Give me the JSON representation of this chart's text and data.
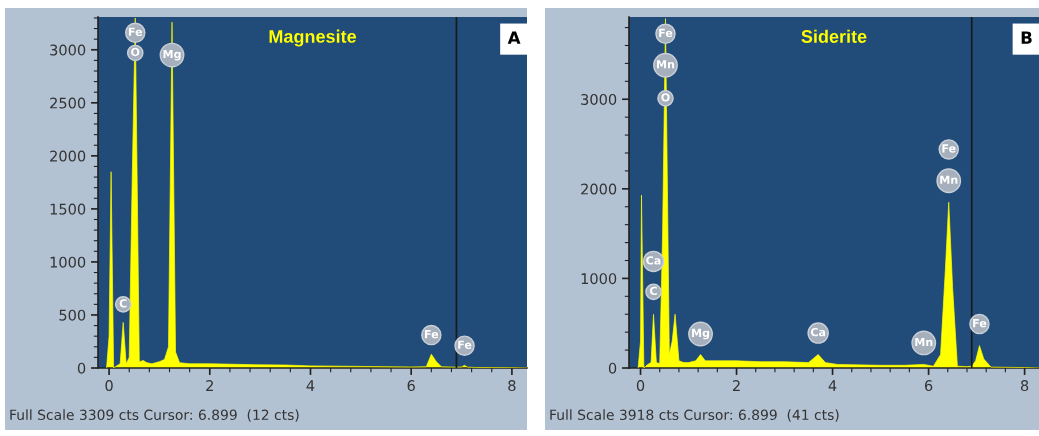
{
  "chart_data": [
    {
      "type": "area",
      "title": "Magnesite",
      "xlim": [
        -0.22,
        8.3
      ],
      "ylim": [
        0,
        3309
      ],
      "xticks": [
        0,
        2,
        4,
        6,
        8
      ],
      "yticks": [
        0,
        500,
        1000,
        1500,
        2000,
        2500,
        3000
      ],
      "grid": false,
      "x": [
        -0.05,
        0.0,
        0.04,
        0.09,
        0.15,
        0.22,
        0.28,
        0.34,
        0.4,
        0.46,
        0.52,
        0.6,
        0.68,
        0.75,
        0.85,
        1.0,
        1.1,
        1.18,
        1.25,
        1.32,
        1.4,
        1.6,
        2.0,
        2.5,
        3.0,
        3.5,
        4.0,
        5.0,
        5.5,
        6.0,
        6.3,
        6.4,
        6.5,
        6.6,
        6.9,
        7.0,
        7.06,
        7.12,
        7.3,
        8.0,
        8.3
      ],
      "series": [
        {
          "color": "#ffff00",
          "values": [
            0,
            300,
            1850,
            0,
            20,
            40,
            430,
            40,
            100,
            1800,
            3300,
            60,
            70,
            50,
            40,
            60,
            80,
            200,
            3260,
            150,
            50,
            40,
            40,
            35,
            30,
            28,
            20,
            15,
            12,
            10,
            12,
            130,
            60,
            12,
            8,
            10,
            25,
            8,
            5,
            3,
            0
          ]
        }
      ],
      "ref_lines": [
        {
          "axis": "x",
          "value": 6.899,
          "color": "#1a1a1a"
        }
      ],
      "annotations": [
        "A",
        "Full Scale 3309 cts Cursor: 6.899  (12 cts)",
        {
          "text": "O",
          "x": 0.52,
          "y": 2970
        },
        {
          "text": "Fe",
          "x": 0.52,
          "y": 3160
        },
        {
          "text": "Mg",
          "x": 1.25,
          "y": 2950
        },
        {
          "text": "C",
          "x": 0.28,
          "y": 600
        },
        {
          "text": "Fe",
          "x": 6.4,
          "y": 310
        },
        {
          "text": "Fe",
          "x": 7.06,
          "y": 210
        }
      ]
    },
    {
      "type": "area",
      "title": "Siderite",
      "xlim": [
        -0.24,
        8.3
      ],
      "ylim": [
        0,
        3918
      ],
      "xticks": [
        0,
        2,
        4,
        6,
        8
      ],
      "yticks": [
        0,
        1000,
        2000,
        3000
      ],
      "grid": false,
      "x": [
        -0.05,
        0.0,
        0.02,
        0.07,
        0.15,
        0.22,
        0.27,
        0.33,
        0.4,
        0.46,
        0.52,
        0.6,
        0.66,
        0.72,
        0.8,
        0.9,
        1.0,
        1.15,
        1.25,
        1.35,
        1.6,
        2.0,
        2.5,
        3.0,
        3.5,
        3.7,
        3.85,
        4.1,
        4.5,
        5.0,
        5.5,
        5.9,
        6.1,
        6.25,
        6.35,
        6.42,
        6.5,
        6.6,
        6.8,
        6.9,
        6.98,
        7.06,
        7.15,
        7.3,
        8.0,
        8.3
      ],
      "series": [
        {
          "color": "#ffff00",
          "values": [
            0,
            300,
            1930,
            0,
            40,
            60,
            600,
            60,
            50,
            1500,
            3900,
            150,
            300,
            600,
            80,
            60,
            60,
            80,
            150,
            80,
            80,
            80,
            70,
            70,
            60,
            150,
            60,
            40,
            35,
            30,
            30,
            40,
            20,
            150,
            1100,
            1850,
            900,
            20,
            15,
            20,
            80,
            250,
            100,
            10,
            5,
            0
          ]
        }
      ],
      "ref_lines": [
        {
          "axis": "x",
          "value": 6.899,
          "color": "#1a1a1a"
        }
      ],
      "annotations": [
        "B",
        "Full Scale 3918 cts Cursor: 6.899  (41 cts)",
        {
          "text": "O",
          "x": 0.52,
          "y": 3010
        },
        {
          "text": "Mn",
          "x": 0.52,
          "y": 3380
        },
        {
          "text": "Fe",
          "x": 0.52,
          "y": 3730
        },
        {
          "text": "C",
          "x": 0.27,
          "y": 850
        },
        {
          "text": "Ca",
          "x": 0.27,
          "y": 1190
        },
        {
          "text": "Mg",
          "x": 1.25,
          "y": 380
        },
        {
          "text": "Ca",
          "x": 3.7,
          "y": 390
        },
        {
          "text": "Mn",
          "x": 5.9,
          "y": 280
        },
        {
          "text": "Mn",
          "x": 6.42,
          "y": 2090
        },
        {
          "text": "Fe",
          "x": 6.42,
          "y": 2440
        },
        {
          "text": "Fe",
          "x": 7.06,
          "y": 490
        }
      ]
    }
  ]
}
